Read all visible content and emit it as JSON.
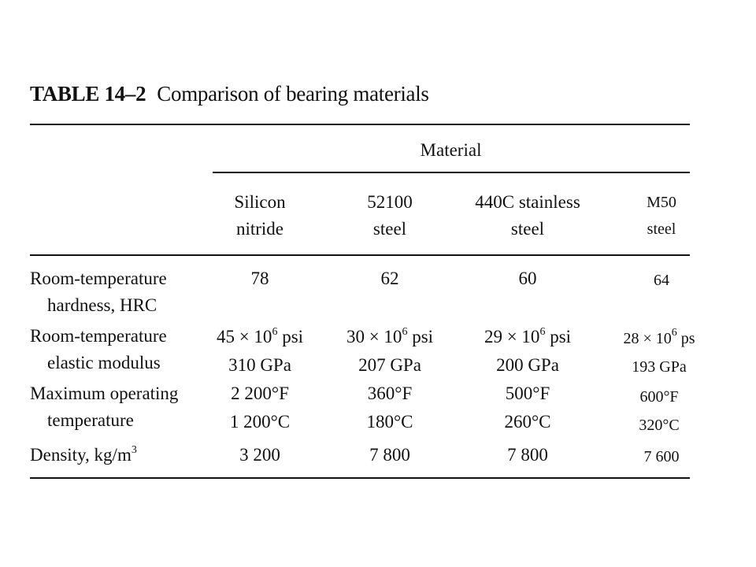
{
  "table": {
    "number": "TABLE 14–2",
    "title": "Comparison of bearing materials",
    "group_header": "Material",
    "columns": [
      {
        "line1": "Silicon",
        "line2": "nitride"
      },
      {
        "line1": "52100",
        "line2": "steel"
      },
      {
        "line1": "440C stainless",
        "line2": "steel"
      },
      {
        "line1": "M50",
        "line2": "steel"
      }
    ],
    "rows": [
      {
        "label1": "Room-temperature",
        "label2": "hardness, HRC",
        "values": [
          [
            "78"
          ],
          [
            "62"
          ],
          [
            "60"
          ],
          [
            "64"
          ]
        ]
      },
      {
        "label1": "Room-temperature",
        "label2": "elastic modulus",
        "values": [
          [
            "45 × 10",
            "6",
            " psi",
            "310 GPa"
          ],
          [
            "30 × 10",
            "6",
            " psi",
            "207 GPa"
          ],
          [
            "29 × 10",
            "6",
            " psi",
            "200 GPa"
          ],
          [
            "28 × 10",
            "6",
            " ps",
            "193 GPa"
          ]
        ]
      },
      {
        "label1": "Maximum operating",
        "label2": "temperature",
        "values": [
          [
            "2 200°F",
            "1 200°C"
          ],
          [
            "360°F",
            "180°C"
          ],
          [
            "500°F",
            "260°C"
          ],
          [
            "600°F",
            "320°C"
          ]
        ]
      },
      {
        "label1": "Density, kg/m",
        "label1_sup": "3",
        "values": [
          [
            "3 200"
          ],
          [
            "7 800"
          ],
          [
            "7 800"
          ],
          [
            "7 600"
          ]
        ]
      }
    ]
  }
}
